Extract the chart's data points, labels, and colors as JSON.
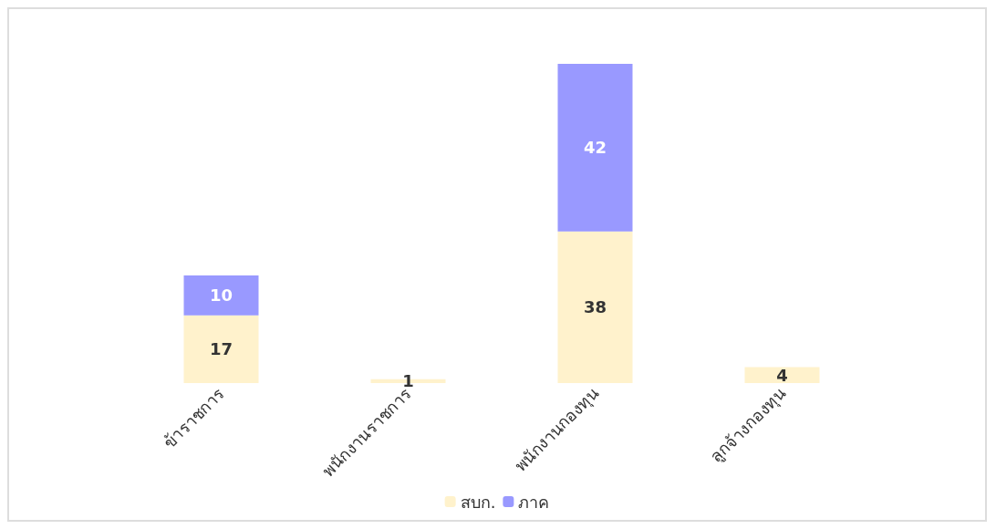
{
  "chart_data": {
    "type": "bar",
    "stacked": true,
    "data_labels": true,
    "legend": "bottom",
    "categories": [
      "ข้าราชการ",
      "พนักงานราชการ",
      "พนักงานกองทุน",
      "ลูกจ้างกองทุน"
    ],
    "series": [
      {
        "name": "สบก.",
        "color": "#fff2cc",
        "values": [
          17,
          1,
          38,
          4
        ]
      },
      {
        "name": "ภาค",
        "color": "#9999ff",
        "values": [
          10,
          null,
          42,
          null
        ]
      }
    ]
  }
}
